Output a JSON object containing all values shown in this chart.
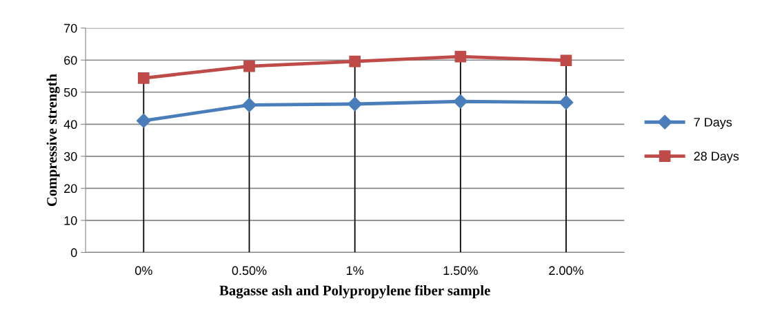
{
  "chart_data": {
    "type": "line",
    "xlabel": "Bagasse ash and Polypropylene fiber sample",
    "ylabel": "Compressive strength",
    "categories": [
      "0%",
      "0.50%",
      "1%",
      "1.50%",
      "2.00%"
    ],
    "series": [
      {
        "name": "7 Days",
        "color": "#4a7ebb",
        "marker": "diamond",
        "values": [
          41.1,
          46.0,
          46.3,
          47.1,
          46.8
        ]
      },
      {
        "name": "28 Days",
        "color": "#be4b48",
        "marker": "square",
        "values": [
          54.4,
          58.1,
          59.6,
          61.1,
          59.9
        ]
      }
    ],
    "ylim": [
      0,
      70
    ],
    "yticks": [
      0,
      10,
      20,
      30,
      40,
      50,
      60,
      70
    ],
    "grid": "y",
    "legend": "right",
    "ref_lines": [
      {
        "axis": "x",
        "value": "0%",
        "color": "#000000"
      },
      {
        "axis": "x",
        "value": "0.50%",
        "color": "#000000"
      },
      {
        "axis": "x",
        "value": "1%",
        "color": "#000000"
      },
      {
        "axis": "x",
        "value": "1.50%",
        "color": "#000000"
      },
      {
        "axis": "x",
        "value": "2.00%",
        "color": "#000000"
      }
    ]
  }
}
